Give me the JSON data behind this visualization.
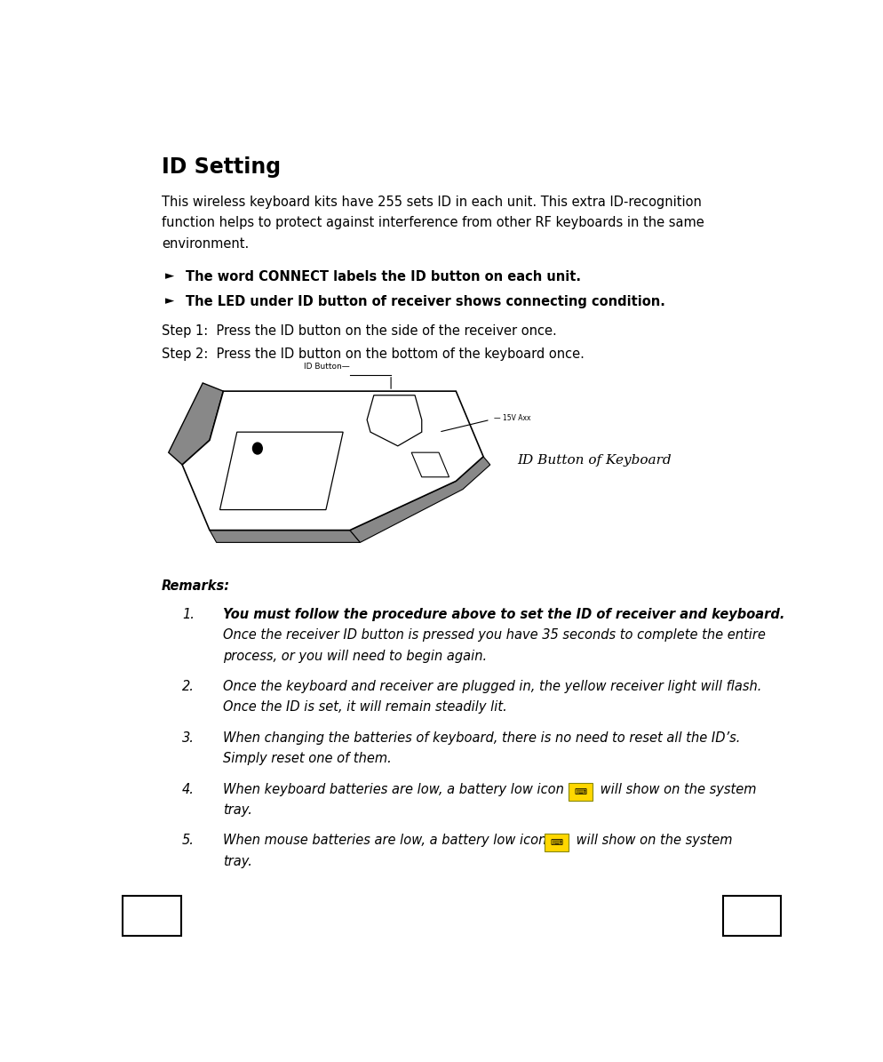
{
  "title": "ID Setting",
  "bg_color": "#ffffff",
  "text_color": "#000000",
  "intro_line1": "This wireless keyboard kits have 255 sets ID in each unit. This extra ID-recognition",
  "intro_line2": "function helps to protect against interference from other RF keyboards in the same",
  "intro_line3": "environment.",
  "bullet1": "The word CONNECT labels the ID button on each unit.",
  "bullet2": "The LED under ID button of receiver shows connecting condition.",
  "step1": "Step 1:  Press the ID button on the side of the receiver once.",
  "step2": "Step 2:  Press the ID button on the bottom of the keyboard once.",
  "image_label": "ID Button of Keyboard",
  "remarks_label": "Remarks:",
  "remark1_bold": "You must follow the procedure above to set the ID of receiver and keyboard.",
  "remark1_line2": "Once the receiver ID button is pressed you have 35 seconds to complete the entire",
  "remark1_line3": "process, or you will need to begin again.",
  "remark2_line1": "Once the keyboard and receiver are plugged in, the yellow receiver light will flash.",
  "remark2_line2": "Once the ID is set, it will remain steadily lit.",
  "remark3_line1": "When changing the batteries of keyboard, there is no need to reset all the ID’s.",
  "remark3_line2": "Simply reset one of them.",
  "remark4_pre": "When keyboard batteries are low, a battery low icon",
  "remark4_post": " will show on the system",
  "remark4_line2": "tray.",
  "remark5_pre": "When mouse batteries are low, a battery low icon",
  "remark5_post": " will show on the system",
  "remark5_line2": "tray.",
  "font_size_title": 17,
  "font_size_body": 10.5,
  "lm": 0.075,
  "bullet_indent": 0.11,
  "num_indent": 0.105,
  "text_indent": 0.165
}
